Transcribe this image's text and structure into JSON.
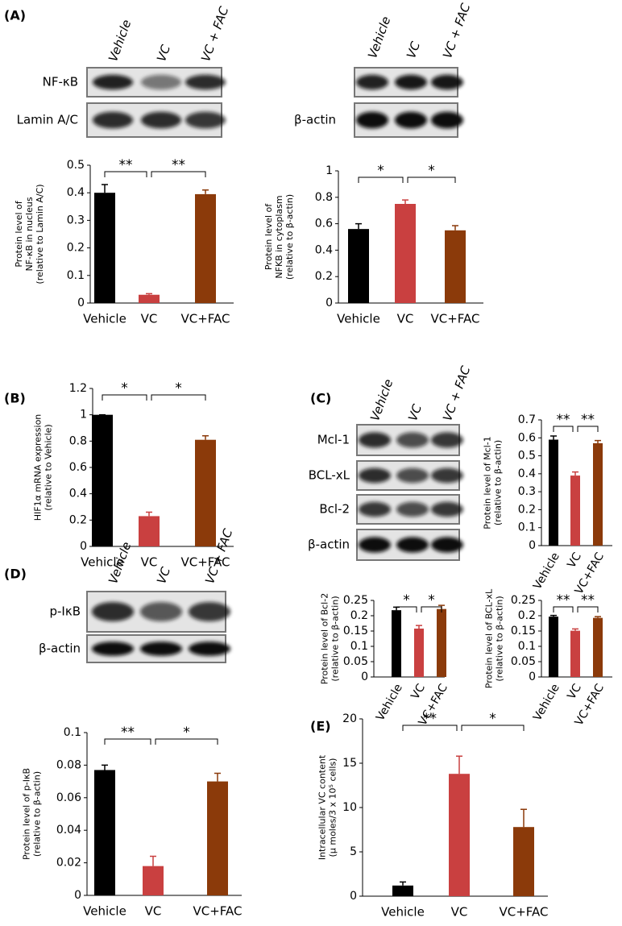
{
  "panel_labels": [
    "(A)",
    "(B)",
    "(C)",
    "(D)",
    "(E)"
  ],
  "blots": [
    {
      "lanes": [
        "Vehicle",
        "VC",
        "VC + FAC"
      ],
      "rows": [
        "NF-κB",
        "Lamin A/C"
      ]
    },
    {
      "lanes": [
        "Vehicle",
        "VC",
        "VC + FAC"
      ],
      "rows": [
        null,
        "β-actin"
      ]
    },
    {
      "lanes": [
        "Vehicle",
        "VC",
        "VC + FAC"
      ],
      "rows": [
        "Mcl-1",
        "BCL-xL",
        "Bcl-2",
        "β-actin"
      ]
    },
    {
      "lanes": [
        "Vehicle",
        "VC",
        "VC + FAC"
      ],
      "rows": [
        "p-IκB",
        "β-actin"
      ]
    }
  ],
  "chart_data": [
    {
      "type": "bar",
      "ylabel": [
        "Protein level of",
        "NF-κB in nucleus",
        "(relative to Lamin A/C)"
      ],
      "categories": [
        "Vehicle",
        "VC",
        "VC+FAC"
      ],
      "values": [
        0.4,
        0.03,
        0.395
      ],
      "errors": [
        0.03,
        0.004,
        0.015
      ],
      "colors": [
        "#000000",
        "#c94040",
        "#8b3a0a"
      ],
      "ylim": [
        0,
        0.5
      ],
      "yticks": [
        0,
        0.1,
        0.2,
        0.3,
        0.4,
        0.5
      ],
      "significance": [
        {
          "from": 0,
          "to": 1,
          "label": "**"
        },
        {
          "from": 1,
          "to": 2,
          "label": "**"
        }
      ]
    },
    {
      "type": "bar",
      "ylabel": [
        "Protein level of",
        "NFKB in cytoplasm",
        "(relative to β-actin)"
      ],
      "categories": [
        "Vehicle",
        "VC",
        "VC+FAC"
      ],
      "values": [
        0.56,
        0.75,
        0.55
      ],
      "errors": [
        0.04,
        0.03,
        0.035
      ],
      "colors": [
        "#000000",
        "#c94040",
        "#8b3a0a"
      ],
      "ylim": [
        0,
        1
      ],
      "yticks": [
        0,
        0.2,
        0.4,
        0.6,
        0.8,
        1
      ],
      "significance": [
        {
          "from": 0,
          "to": 1,
          "label": "*"
        },
        {
          "from": 1,
          "to": 2,
          "label": "*"
        }
      ]
    },
    {
      "type": "bar",
      "ylabel": [
        "HIF1α  mRNA  expression",
        "(relative to Vehicle)"
      ],
      "categories": [
        "Vehicle",
        "VC",
        "VC+FAC"
      ],
      "values": [
        1,
        0.23,
        0.81
      ],
      "errors": [
        0,
        0.03,
        0.03
      ],
      "colors": [
        "#000000",
        "#c94040",
        "#8b3a0a"
      ],
      "ylim": [
        0,
        1.2
      ],
      "yticks": [
        0,
        0.2,
        0.4,
        0.6,
        0.8,
        1,
        1.2
      ],
      "significance": [
        {
          "from": 0,
          "to": 1,
          "label": "*"
        },
        {
          "from": 1,
          "to": 2,
          "label": "*"
        }
      ]
    },
    {
      "type": "bar",
      "ylabel": [
        "Protein level of  Mcl-1",
        "(relative to β-actin)"
      ],
      "rotated_categories": true,
      "categories": [
        "Vehicle",
        "VC",
        "VC+FAC"
      ],
      "values": [
        0.59,
        0.39,
        0.57
      ],
      "errors": [
        0.02,
        0.02,
        0.015
      ],
      "colors": [
        "#000000",
        "#c94040",
        "#8b3a0a"
      ],
      "ylim": [
        0,
        0.7
      ],
      "yticks": [
        0,
        0.1,
        0.2,
        0.3,
        0.4,
        0.5,
        0.6,
        0.7
      ],
      "significance": [
        {
          "from": 0,
          "to": 1,
          "label": "**"
        },
        {
          "from": 1,
          "to": 2,
          "label": "**"
        }
      ]
    },
    {
      "type": "bar",
      "ylabel": [
        "Protein level of  Bcl-2",
        "(relative to β-actin)"
      ],
      "rotated_categories": true,
      "categories": [
        "Vehicle",
        "VC",
        "VC+FAC"
      ],
      "values": [
        0.218,
        0.158,
        0.222
      ],
      "errors": [
        0.01,
        0.01,
        0.012
      ],
      "colors": [
        "#000000",
        "#c94040",
        "#8b3a0a"
      ],
      "ylim": [
        0,
        0.25
      ],
      "yticks": [
        0,
        0.05,
        0.1,
        0.15,
        0.2,
        0.25
      ],
      "significance": [
        {
          "from": 0,
          "to": 1,
          "label": "*"
        },
        {
          "from": 1,
          "to": 2,
          "label": "*"
        }
      ]
    },
    {
      "type": "bar",
      "ylabel": [
        "Protein level of  BCL-xL",
        "(relative to β-actin)"
      ],
      "rotated_categories": true,
      "categories": [
        "Vehicle",
        "VC",
        "VC+FAC"
      ],
      "values": [
        0.197,
        0.151,
        0.193
      ],
      "errors": [
        0.004,
        0.006,
        0.004
      ],
      "colors": [
        "#000000",
        "#c94040",
        "#8b3a0a"
      ],
      "ylim": [
        0,
        0.25
      ],
      "yticks": [
        0,
        0.05,
        0.1,
        0.15,
        0.2,
        0.25
      ],
      "significance": [
        {
          "from": 0,
          "to": 1,
          "label": "**"
        },
        {
          "from": 1,
          "to": 2,
          "label": "**"
        }
      ]
    },
    {
      "type": "bar",
      "ylabel": [
        "Protein level of  p-IκB",
        "(relative to β-actin)"
      ],
      "categories": [
        "Vehicle",
        "VC",
        "VC+FAC"
      ],
      "values": [
        0.077,
        0.018,
        0.07
      ],
      "errors": [
        0.003,
        0.006,
        0.005
      ],
      "colors": [
        "#000000",
        "#c94040",
        "#8b3a0a"
      ],
      "ylim": [
        0,
        0.1
      ],
      "yticks": [
        0,
        0.02,
        0.04,
        0.06,
        0.08,
        0.1
      ],
      "significance": [
        {
          "from": 0,
          "to": 1,
          "label": "**"
        },
        {
          "from": 1,
          "to": 2,
          "label": "*"
        }
      ]
    },
    {
      "type": "bar",
      "ylabel": [
        "Intracellular VC content",
        "(μ moles/3 x 10⁵ cells)"
      ],
      "categories": [
        "Vehicle",
        "VC",
        "VC+FAC"
      ],
      "values": [
        1.2,
        13.8,
        7.8
      ],
      "errors": [
        0.4,
        2,
        2
      ],
      "colors": [
        "#000000",
        "#c94040",
        "#8b3a0a"
      ],
      "ylim": [
        0,
        20
      ],
      "yticks": [
        0,
        5,
        10,
        15,
        20
      ],
      "significance": [
        {
          "from": 0,
          "to": 1,
          "label": "**"
        },
        {
          "from": 1,
          "to": 2,
          "label": "*"
        }
      ]
    }
  ]
}
